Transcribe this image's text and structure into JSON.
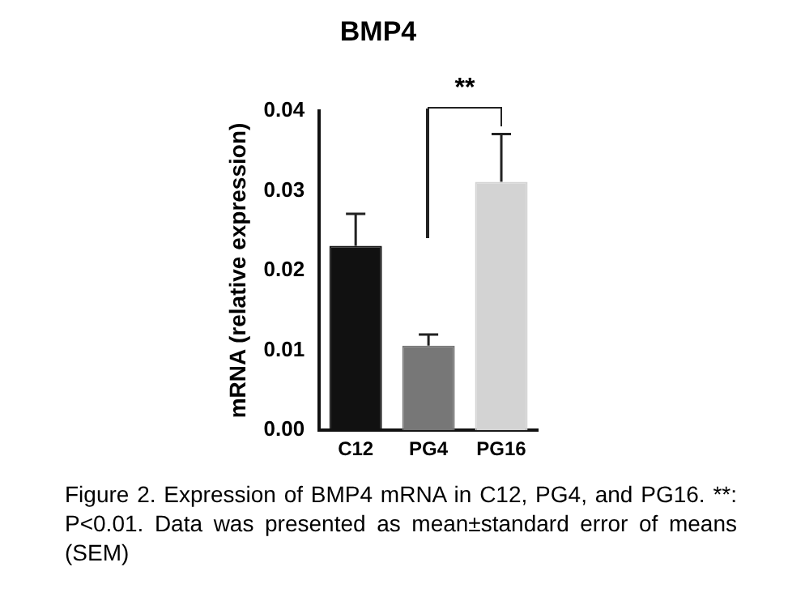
{
  "chart_data": {
    "type": "bar",
    "title": "BMP4",
    "ylabel": "mRNA (relative expression)",
    "categories": [
      "C12",
      "PG4",
      "PG16"
    ],
    "values": [
      0.0231,
      0.0106,
      0.0311
    ],
    "colors": [
      "#111111",
      "#777777",
      "#d3d3d3"
    ],
    "errors": [
      [
        0.0231,
        0.0271
      ],
      [
        0.0106,
        0.012
      ],
      [
        0.0311,
        0.0371
      ]
    ],
    "ylim": [
      0,
      0.04
    ],
    "yticks": [
      {
        "value": 0,
        "label": "0.00"
      },
      0.01,
      0.02,
      0.03,
      0.04
    ],
    "grid": false,
    "legend": false,
    "annotations": [
      "**",
      "Figure 2. Expression of BMP4 mRNA in C12, PG4, and PG16. **: P<0.01. Data was presented as mean±standard error of means (SEM)"
    ]
  }
}
